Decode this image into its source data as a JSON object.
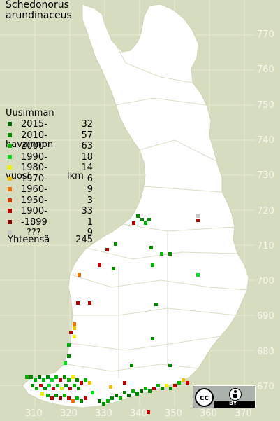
{
  "title": {
    "line1": "Schedonorus",
    "line2": "arundinaceus"
  },
  "legend": {
    "heading": [
      "Uusimman",
      "havainnon",
      "vuosi"
    ],
    "count_heading": "lkm",
    "items": [
      {
        "label": "2015-",
        "count": "32",
        "color": "#006400"
      },
      {
        "label": "2010-",
        "count": "57",
        "color": "#008800"
      },
      {
        "label": "2000-",
        "count": "63",
        "color": "#00b400"
      },
      {
        "label": "1990-",
        "count": "18",
        "color": "#00e01c"
      },
      {
        "label": "1980-",
        "count": "14",
        "color": "#f0f000"
      },
      {
        "label": "1970-",
        "count": "6",
        "color": "#f0c000"
      },
      {
        "label": "1960-",
        "count": "9",
        "color": "#f07000"
      },
      {
        "label": "1950-",
        "count": "3",
        "color": "#e03000"
      },
      {
        "label": "1900-",
        "count": "33",
        "color": "#c00000"
      },
      {
        "label": "-1899",
        "count": "1",
        "color": "#8a0000"
      },
      {
        "label": "???",
        "count": "9",
        "color": "#c8c8c8"
      }
    ],
    "total_label": "Yhteensä",
    "total_count": "245"
  },
  "axes": {
    "y_ticks": [
      "770",
      "760",
      "750",
      "740",
      "730",
      "720",
      "710",
      "700",
      "690",
      "680",
      "670"
    ],
    "x_ticks": [
      "310",
      "320",
      "330",
      "340",
      "350",
      "360",
      "370"
    ]
  },
  "license_badge": {
    "icon": "cc-by-icon",
    "text": "BY"
  },
  "colors": {
    "background": "#d6dcbf",
    "land": "#ffffff",
    "border": "#ccd2b0"
  }
}
